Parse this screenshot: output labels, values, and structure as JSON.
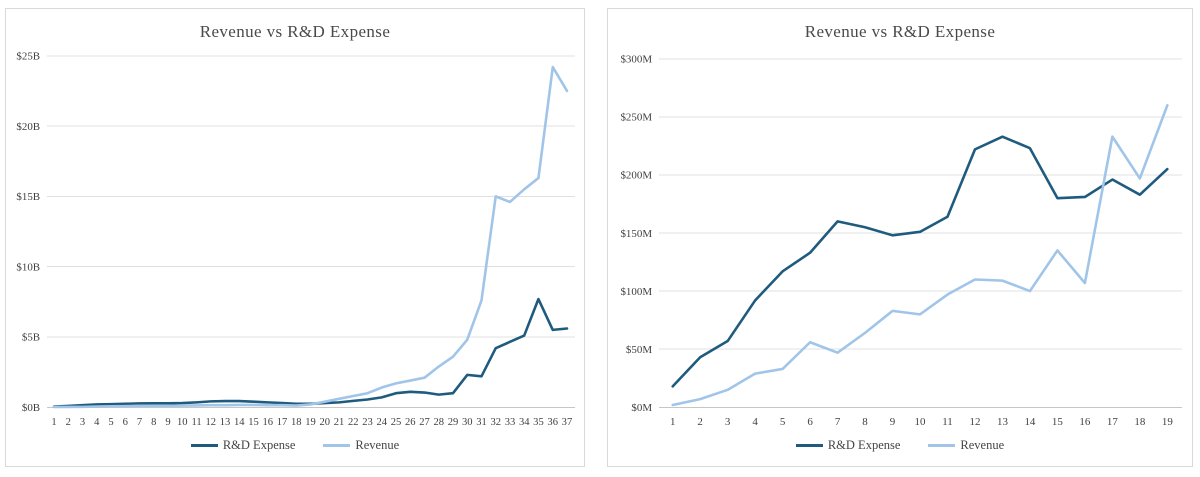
{
  "page": {
    "background": "#ffffff",
    "card_border": "#d9d9d9"
  },
  "colors": {
    "rd_expense": "#1e5b7e",
    "revenue": "#a1c5e8",
    "gridline": "#e0e0e0",
    "axis": "#c6c6c6",
    "title_text": "#4a4a4a",
    "tick_text": "#3f3f3f"
  },
  "chart_data": [
    {
      "type": "line",
      "title": "Revenue vs R&D Expense",
      "xlabel": "",
      "ylabel": "",
      "unit": "USD billions",
      "ylim": [
        0,
        25
      ],
      "grid": true,
      "legend_position": "bottom",
      "x_labels": [
        "1",
        "2",
        "3",
        "4",
        "5",
        "6",
        "7",
        "8",
        "9",
        "10",
        "11",
        "12",
        "13",
        "14",
        "15",
        "16",
        "17",
        "18",
        "19",
        "20",
        "21",
        "22",
        "23",
        "24",
        "25",
        "26",
        "27",
        "28",
        "29",
        "30",
        "31",
        "32",
        "33",
        "34",
        "35",
        "36",
        "37"
      ],
      "y_ticks": [
        {
          "value": 0,
          "label": "$0B"
        },
        {
          "value": 5,
          "label": "$5B"
        },
        {
          "value": 10,
          "label": "$10B"
        },
        {
          "value": 15,
          "label": "$15B"
        },
        {
          "value": 20,
          "label": "$20B"
        },
        {
          "value": 25,
          "label": "$25B"
        }
      ],
      "series": [
        {
          "name": "R&D Expense",
          "color": "#1e5b7e",
          "values": [
            0.05,
            0.1,
            0.15,
            0.2,
            0.22,
            0.25,
            0.27,
            0.28,
            0.28,
            0.3,
            0.35,
            0.42,
            0.44,
            0.44,
            0.4,
            0.35,
            0.3,
            0.25,
            0.25,
            0.3,
            0.35,
            0.45,
            0.55,
            0.7,
            1.0,
            1.1,
            1.05,
            0.9,
            1.0,
            2.3,
            2.2,
            4.2,
            4.65,
            5.1,
            7.7,
            5.5,
            5.6
          ]
        },
        {
          "name": "Revenue",
          "color": "#a1c5e8",
          "values": [
            0.02,
            0.02,
            0.03,
            0.05,
            0.07,
            0.08,
            0.1,
            0.1,
            0.1,
            0.12,
            0.13,
            0.15,
            0.15,
            0.16,
            0.16,
            0.15,
            0.15,
            0.12,
            0.2,
            0.4,
            0.6,
            0.8,
            1.0,
            1.4,
            1.7,
            1.9,
            2.1,
            2.9,
            3.6,
            4.8,
            7.6,
            15.0,
            14.6,
            15.5,
            16.3,
            24.2,
            22.5
          ]
        }
      ]
    },
    {
      "type": "line",
      "title": "Revenue vs R&D Expense",
      "xlabel": "",
      "ylabel": "",
      "unit": "USD millions",
      "ylim": [
        0,
        300
      ],
      "grid": true,
      "legend_position": "bottom",
      "x_labels": [
        "1",
        "2",
        "3",
        "4",
        "5",
        "6",
        "7",
        "8",
        "9",
        "10",
        "11",
        "12",
        "13",
        "14",
        "15",
        "16",
        "17",
        "18",
        "19"
      ],
      "y_ticks": [
        {
          "value": 0,
          "label": "$0M"
        },
        {
          "value": 50,
          "label": "$50M"
        },
        {
          "value": 100,
          "label": "$100M"
        },
        {
          "value": 150,
          "label": "$150M"
        },
        {
          "value": 200,
          "label": "$200M"
        },
        {
          "value": 250,
          "label": "$250M"
        },
        {
          "value": 300,
          "label": "$300M"
        }
      ],
      "series": [
        {
          "name": "R&D Expense",
          "color": "#1e5b7e",
          "values": [
            18,
            43,
            57,
            92,
            117,
            133,
            160,
            155,
            148,
            151,
            164,
            222,
            233,
            223,
            180,
            181,
            196,
            183,
            205
          ]
        },
        {
          "name": "Revenue",
          "color": "#a1c5e8",
          "values": [
            2,
            7,
            15,
            29,
            33,
            56,
            47,
            64,
            83,
            80,
            97,
            110,
            109,
            100,
            135,
            107,
            233,
            197,
            260
          ]
        }
      ]
    }
  ]
}
